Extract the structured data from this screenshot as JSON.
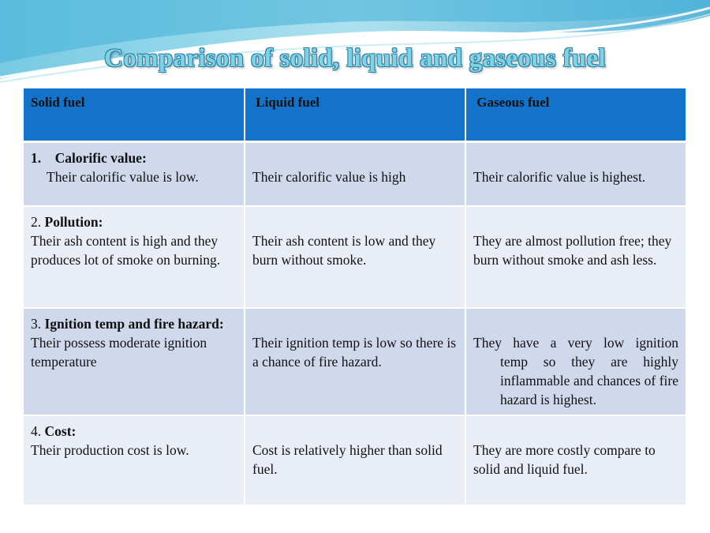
{
  "title": "Comparison of solid, liquid and gaseous fuel",
  "colors": {
    "header": "#1372c9",
    "row_dark": "#d0d8ec",
    "row_light": "#e9edf6",
    "title": "#7fd3e6"
  },
  "table": {
    "headers": [
      "Solid fuel",
      "Liquid fuel",
      "Gaseous  fuel"
    ],
    "rows": [
      {
        "num": "1.",
        "heading": "Calorific value:",
        "solid": "Their calorific value is low.",
        "liquid": "Their calorific value is high",
        "gaseous": "Their calorific value is highest."
      },
      {
        "num": "2.",
        "heading": "Pollution:",
        "solid": "Their ash content is high and they  produces lot of smoke on burning.",
        "liquid": "Their ash content is low and they burn without smoke.",
        "gaseous": "They are almost pollution free; they burn without  smoke and ash less."
      },
      {
        "num": "3.",
        "heading": "Ignition temp and fire hazard:",
        "solid": "Their possess moderate ignition temperature",
        "liquid": "Their ignition temp is low  so there is a chance of fire hazard.",
        "gaseous_first": "They have a very low ignition",
        "gaseous_rest": "temp so they are highly inflammable and chances of fire hazard is highest."
      },
      {
        "num": "4.",
        "heading": "Cost:",
        "solid": "Their production cost  is low.",
        "liquid": "Cost is relatively higher than solid fuel.",
        "gaseous": "They are more costly compare to solid and liquid fuel."
      }
    ]
  }
}
